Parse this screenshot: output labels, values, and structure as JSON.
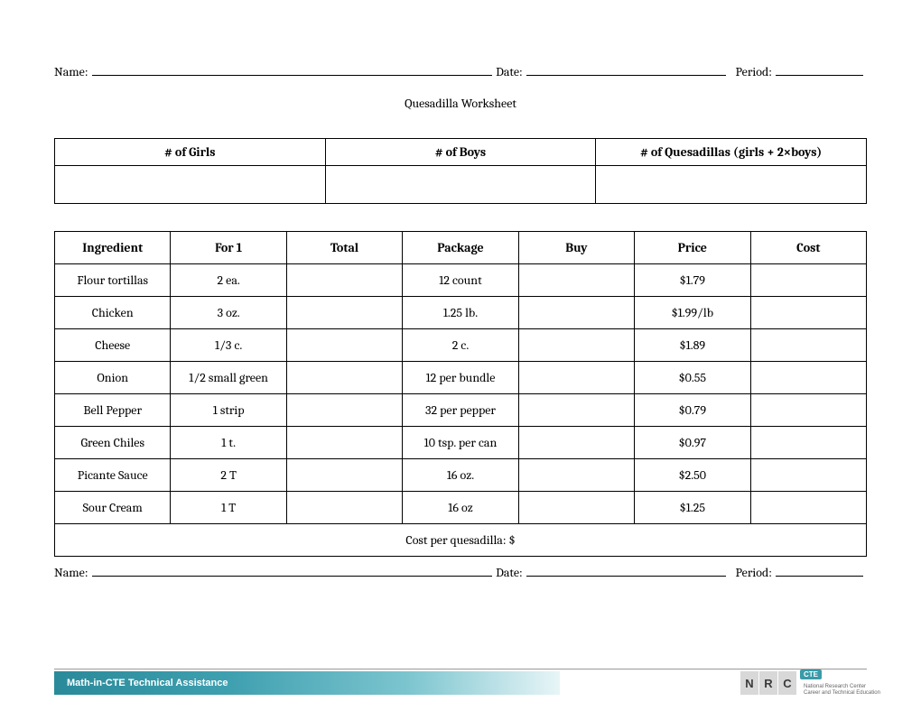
{
  "header": {
    "name_label": "Name:",
    "date_label": "Date:",
    "period_label": "Period:"
  },
  "title": "Quesadilla Worksheet",
  "count_table": {
    "columns": [
      "# of Girls",
      "# of Boys",
      "# of Quesadillas (girls + 2×boys)"
    ]
  },
  "ing_table": {
    "columns": [
      "Ingredient",
      "For 1",
      "Total",
      "Package",
      "Buy",
      "Price",
      "Cost"
    ],
    "rows": [
      [
        "Flour tortillas",
        "2 ea.",
        "",
        "12 count",
        "",
        "$1.79",
        ""
      ],
      [
        "Chicken",
        "3 oz.",
        "",
        "1.25 lb.",
        "",
        "$1.99/lb",
        ""
      ],
      [
        "Cheese",
        "1/3 c.",
        "",
        "2 c.",
        "",
        "$1.89",
        ""
      ],
      [
        "Onion",
        "1/2 small green",
        "",
        "12 per bundle",
        "",
        "$0.55",
        ""
      ],
      [
        "Bell Pepper",
        "1 strip",
        "",
        "32 per pepper",
        "",
        "$0.79",
        ""
      ],
      [
        "Green Chiles",
        "1 t.",
        "",
        "10 tsp. per can",
        "",
        "$0.97",
        ""
      ],
      [
        "Picante Sauce",
        "2 T",
        "",
        "16 oz.",
        "",
        "$2.50",
        ""
      ],
      [
        "Sour Cream",
        "1 T",
        "",
        "16 oz",
        "",
        "$1.25",
        ""
      ]
    ],
    "cost_label": "Cost per quesadilla: $"
  },
  "footer": {
    "bar_text": "Math-in-CTE Technical Assistance",
    "logo_letters": [
      "N",
      "R",
      "C"
    ],
    "logo_badge": "CTE",
    "logo_sub1": "National Research Center",
    "logo_sub2": "Career and Technical Education"
  }
}
